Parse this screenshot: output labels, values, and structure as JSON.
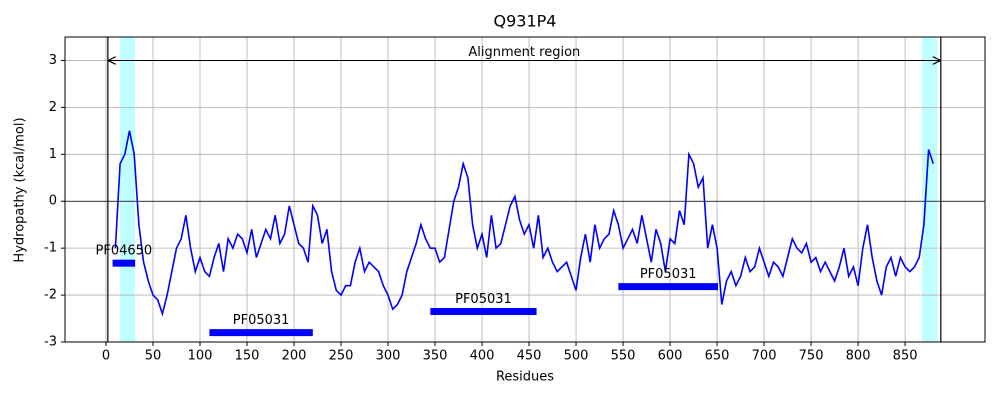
{
  "chart_data": {
    "type": "line",
    "title": "Q931P4",
    "xlabel": "Residues",
    "ylabel": "Hydropathy (kcal/mol)",
    "xlim": [
      -43.6,
      935
    ],
    "ylim": [
      -3,
      3.5
    ],
    "xticks": [
      0,
      50,
      100,
      150,
      200,
      250,
      300,
      350,
      400,
      450,
      500,
      550,
      600,
      650,
      700,
      750,
      800,
      850
    ],
    "yticks": [
      -3,
      -2,
      -1,
      0,
      1,
      2,
      3
    ],
    "grid": true,
    "series": [
      {
        "color": "#0000ff",
        "x": [
          10,
          15,
          20,
          25,
          30,
          35,
          40,
          45,
          50,
          55,
          60,
          65,
          70,
          75,
          80,
          85,
          90,
          95,
          100,
          105,
          110,
          115,
          120,
          125,
          130,
          135,
          140,
          145,
          150,
          155,
          160,
          165,
          170,
          175,
          180,
          185,
          190,
          195,
          200,
          205,
          210,
          215,
          220,
          225,
          230,
          235,
          240,
          245,
          250,
          255,
          260,
          265,
          270,
          275,
          280,
          285,
          290,
          295,
          300,
          305,
          310,
          315,
          320,
          325,
          330,
          335,
          340,
          345,
          350,
          355,
          360,
          365,
          370,
          375,
          380,
          385,
          390,
          395,
          400,
          405,
          410,
          415,
          420,
          425,
          430,
          435,
          440,
          445,
          450,
          455,
          460,
          465,
          470,
          475,
          480,
          485,
          490,
          495,
          500,
          505,
          510,
          515,
          520,
          525,
          530,
          535,
          540,
          545,
          550,
          555,
          560,
          565,
          570,
          575,
          580,
          585,
          590,
          595,
          600,
          605,
          610,
          615,
          620,
          625,
          630,
          635,
          640,
          645,
          650,
          655,
          660,
          665,
          670,
          675,
          680,
          685,
          690,
          695,
          700,
          705,
          710,
          715,
          720,
          725,
          730,
          735,
          740,
          745,
          750,
          755,
          760,
          765,
          770,
          775,
          780,
          785,
          790,
          795,
          800,
          805,
          810,
          815,
          820,
          825,
          830,
          835,
          840,
          845,
          850,
          855,
          860,
          865,
          870,
          875,
          880
        ],
        "values": [
          -1.0,
          0.8,
          1.0,
          1.5,
          1.0,
          -0.5,
          -1.3,
          -1.7,
          -2.0,
          -2.1,
          -2.4,
          -2.0,
          -1.5,
          -1.0,
          -0.8,
          -0.3,
          -1.0,
          -1.5,
          -1.2,
          -1.5,
          -1.6,
          -1.2,
          -0.9,
          -1.5,
          -0.8,
          -1.0,
          -0.7,
          -0.8,
          -1.1,
          -0.6,
          -1.2,
          -0.9,
          -0.6,
          -0.8,
          -0.3,
          -0.9,
          -0.7,
          -0.1,
          -0.5,
          -0.9,
          -1.0,
          -1.3,
          -0.1,
          -0.3,
          -0.9,
          -0.6,
          -1.5,
          -1.9,
          -2.0,
          -1.8,
          -1.8,
          -1.3,
          -1.0,
          -1.5,
          -1.3,
          -1.4,
          -1.5,
          -1.8,
          -2.0,
          -2.3,
          -2.2,
          -2.0,
          -1.5,
          -1.2,
          -0.9,
          -0.5,
          -0.8,
          -1.0,
          -1.0,
          -1.3,
          -1.2,
          -0.6,
          0.0,
          0.3,
          0.8,
          0.5,
          -0.5,
          -1.0,
          -0.7,
          -1.2,
          -0.3,
          -1.0,
          -0.9,
          -0.5,
          -0.1,
          0.1,
          -0.4,
          -0.7,
          -0.5,
          -1.0,
          -0.3,
          -1.2,
          -1.0,
          -1.3,
          -1.5,
          -1.4,
          -1.3,
          -1.6,
          -1.9,
          -1.2,
          -0.7,
          -1.3,
          -0.5,
          -1.0,
          -0.8,
          -0.7,
          -0.2,
          -0.5,
          -1.0,
          -0.8,
          -0.6,
          -0.9,
          -0.3,
          -0.8,
          -1.3,
          -0.6,
          -0.9,
          -1.5,
          -0.8,
          -0.9,
          -0.2,
          -0.5,
          1.0,
          0.8,
          0.3,
          0.5,
          -1.0,
          -0.5,
          -1.0,
          -2.2,
          -1.7,
          -1.5,
          -1.8,
          -1.6,
          -1.2,
          -1.5,
          -1.4,
          -1.0,
          -1.3,
          -1.6,
          -1.3,
          -1.4,
          -1.6,
          -1.2,
          -0.8,
          -1.0,
          -1.1,
          -0.9,
          -1.3,
          -1.2,
          -1.5,
          -1.3,
          -1.5,
          -1.7,
          -1.4,
          -1.0,
          -1.6,
          -1.4,
          -1.8,
          -1.0,
          -0.5,
          -1.2,
          -1.7,
          -2.0,
          -1.4,
          -1.2,
          -1.6,
          -1.2,
          -1.4,
          -1.5,
          -1.4,
          -1.2,
          -0.5,
          1.1,
          0.8
        ]
      }
    ],
    "shaded_regions": [
      {
        "start": 15,
        "end": 31
      },
      {
        "start": 868,
        "end": 884
      }
    ],
    "alignment": {
      "label": "Alignment region",
      "start": 2,
      "end": 888,
      "y": 3
    },
    "domains": [
      {
        "label": "PF04650",
        "start": 7,
        "end": 31,
        "y": -1.32
      },
      {
        "label": "PF05031",
        "start": 110,
        "end": 220,
        "y": -2.8
      },
      {
        "label": "PF05031",
        "start": 345,
        "end": 458,
        "y": -2.35
      },
      {
        "label": "PF05031",
        "start": 545,
        "end": 651,
        "y": -1.82
      }
    ]
  }
}
